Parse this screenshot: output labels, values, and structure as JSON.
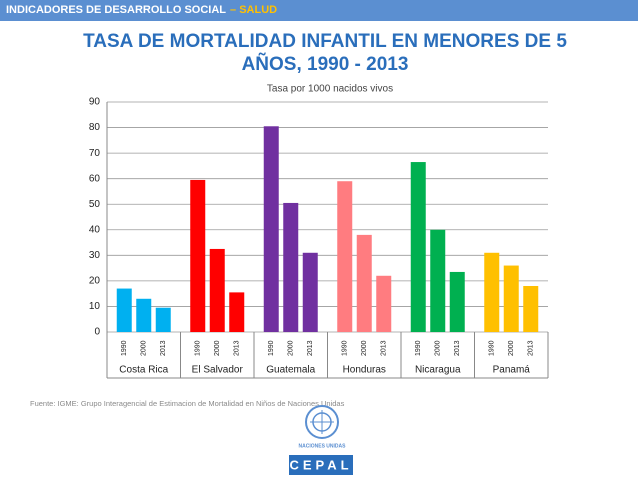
{
  "header": {
    "section": "INDICADORES DE DESARROLLO SOCIAL",
    "topic": "– SALUD"
  },
  "chart_data": {
    "type": "bar",
    "title": "TASA DE MORTALIDAD INFANTIL EN MENORES DE 5 AÑOS, 1990 - 2013",
    "subtitle": "Tasa por 1000 nacidos vivos",
    "categories": [
      "Costa Rica",
      "El Salvador",
      "Guatemala",
      "Honduras",
      "Nicaragua",
      "Panamá"
    ],
    "colors": [
      "#00b0f0",
      "#ff0000",
      "#7030a0",
      "#ff7c80",
      "#00b050",
      "#ffc000"
    ],
    "series": [
      {
        "name": "1990",
        "values": [
          17,
          59.5,
          80.5,
          59,
          66.5,
          31
        ]
      },
      {
        "name": "2000",
        "values": [
          13,
          32.5,
          50.5,
          38,
          40,
          26
        ]
      },
      {
        "name": "2013",
        "values": [
          9.5,
          15.5,
          31,
          22,
          23.5,
          18
        ]
      }
    ],
    "ylim": [
      0,
      90
    ],
    "yticks": [
      0,
      10,
      20,
      30,
      40,
      50,
      60,
      70,
      80,
      90
    ],
    "grid": true
  },
  "source": "Fuente: IGME: Grupo Interagencial de Estimacion de Mortalidad en Niños de Naciones Unidas",
  "logo": {
    "org": "NACIONES UNIDAS",
    "name": "CEPAL"
  }
}
